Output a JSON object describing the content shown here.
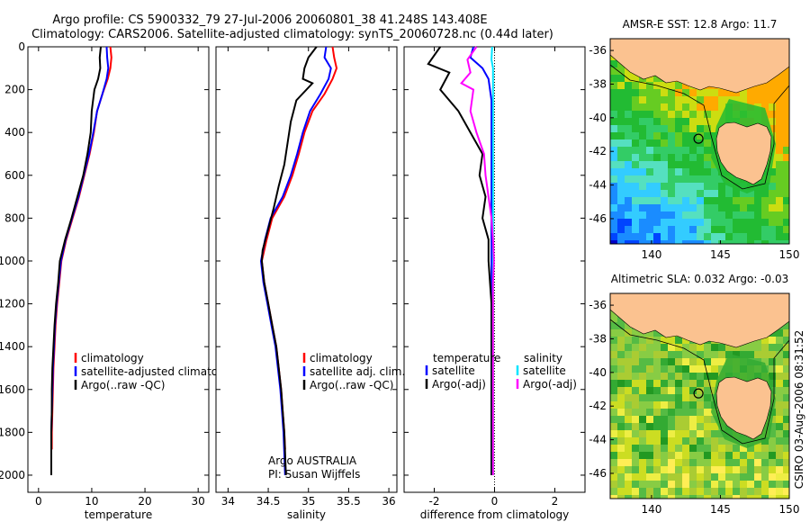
{
  "header": {
    "line1": "Argo profile: CS 5900332_79 27-Jul-2006 20060801_38 41.248S 143.408E",
    "line2": "Climatology: CARS2006. Satellite-adjusted climatology: synTS_20060728.nc (0.44d later)"
  },
  "colors": {
    "clim": "#ff0000",
    "sat": "#0000ff",
    "argo": "#000000",
    "sat_sal": "#00e5ff",
    "argo_sal": "#ff00ff",
    "land": "#fbc290"
  },
  "chart_data": [
    {
      "id": "temperature",
      "type": "line",
      "xlabel": "temperature",
      "ylabel": "",
      "xlim": [
        -2,
        32
      ],
      "ylim": [
        2080,
        0
      ],
      "xticks": [
        "0",
        "10",
        "20",
        "30"
      ],
      "yticks": [
        "0",
        "200",
        "400",
        "600",
        "800",
        "1000",
        "1200",
        "1400",
        "1600",
        "1800",
        "2000"
      ],
      "legend": [
        "climatology",
        "satellite-adjusted climatology",
        "Argo(..raw -QC)"
      ],
      "series": [
        {
          "name": "climatology",
          "color": "clim",
          "points": [
            [
              13.5,
              0
            ],
            [
              13.7,
              50
            ],
            [
              13.5,
              100
            ],
            [
              13.0,
              150
            ],
            [
              12.0,
              220
            ],
            [
              11.0,
              300
            ],
            [
              10.4,
              400
            ],
            [
              9.6,
              500
            ],
            [
              8.6,
              600
            ],
            [
              7.6,
              700
            ],
            [
              6.4,
              800
            ],
            [
              5.2,
              900
            ],
            [
              4.3,
              1000
            ],
            [
              3.9,
              1100
            ],
            [
              3.5,
              1200
            ],
            [
              3.2,
              1300
            ],
            [
              3.0,
              1400
            ],
            [
              2.8,
              1500
            ],
            [
              2.7,
              1600
            ],
            [
              2.6,
              1700
            ],
            [
              2.5,
              1800
            ],
            [
              2.5,
              1880
            ]
          ]
        },
        {
          "name": "satellite-adjusted climatology",
          "color": "sat",
          "points": [
            [
              12.8,
              0
            ],
            [
              12.9,
              50
            ],
            [
              13.1,
              100
            ],
            [
              12.8,
              150
            ],
            [
              12.0,
              220
            ],
            [
              11.0,
              300
            ],
            [
              10.3,
              400
            ],
            [
              9.5,
              500
            ],
            [
              8.5,
              600
            ],
            [
              7.5,
              700
            ],
            [
              6.3,
              800
            ],
            [
              5.1,
              900
            ],
            [
              4.2,
              1000
            ],
            [
              3.8,
              1100
            ],
            [
              3.4,
              1200
            ],
            [
              3.1,
              1300
            ],
            [
              2.9,
              1400
            ],
            [
              2.7,
              1500
            ],
            [
              2.6,
              1600
            ],
            [
              2.5,
              1700
            ],
            [
              2.4,
              1800
            ],
            [
              2.4,
              1900
            ],
            [
              2.4,
              2000
            ]
          ]
        },
        {
          "name": "Argo(..raw -QC)",
          "color": "argo",
          "points": [
            [
              11.7,
              0
            ],
            [
              11.5,
              50
            ],
            [
              11.6,
              100
            ],
            [
              11.2,
              150
            ],
            [
              10.5,
              200
            ],
            [
              10.0,
              300
            ],
            [
              9.8,
              400
            ],
            [
              9.2,
              500
            ],
            [
              8.4,
              600
            ],
            [
              7.3,
              700
            ],
            [
              6.2,
              800
            ],
            [
              5.0,
              900
            ],
            [
              4.0,
              1000
            ],
            [
              3.7,
              1100
            ],
            [
              3.3,
              1200
            ],
            [
              3.0,
              1300
            ],
            [
              2.8,
              1400
            ],
            [
              2.6,
              1500
            ],
            [
              2.5,
              1600
            ],
            [
              2.5,
              1700
            ],
            [
              2.4,
              1800
            ],
            [
              2.4,
              1900
            ],
            [
              2.4,
              2000
            ]
          ]
        }
      ]
    },
    {
      "id": "salinity",
      "type": "line",
      "xlabel": "salinity",
      "ylabel": "",
      "xlim": [
        33.85,
        36.1
      ],
      "ylim": [
        2080,
        0
      ],
      "xticks": [
        "34",
        "34.5",
        "35",
        "35.5",
        "36"
      ],
      "yticks": [],
      "legend": [
        "climatology",
        "satellite adj. clim.",
        "Argo(..raw -QC)"
      ],
      "annotations": [
        "Argo AUSTRALIA",
        "PI: Susan Wijffels"
      ],
      "series": [
        {
          "name": "climatology",
          "color": "clim",
          "points": [
            [
              35.3,
              0
            ],
            [
              35.32,
              50
            ],
            [
              35.35,
              100
            ],
            [
              35.3,
              150
            ],
            [
              35.2,
              220
            ],
            [
              35.05,
              300
            ],
            [
              34.95,
              400
            ],
            [
              34.88,
              500
            ],
            [
              34.8,
              600
            ],
            [
              34.7,
              700
            ],
            [
              34.55,
              800
            ],
            [
              34.48,
              900
            ],
            [
              34.42,
              1000
            ],
            [
              34.45,
              1100
            ],
            [
              34.5,
              1200
            ],
            [
              34.55,
              1300
            ],
            [
              34.6,
              1400
            ],
            [
              34.63,
              1500
            ],
            [
              34.66,
              1600
            ],
            [
              34.68,
              1700
            ],
            [
              34.7,
              1800
            ],
            [
              34.71,
              1880
            ]
          ]
        },
        {
          "name": "satellite adj. clim.",
          "color": "sat",
          "points": [
            [
              35.22,
              0
            ],
            [
              35.2,
              50
            ],
            [
              35.28,
              100
            ],
            [
              35.25,
              150
            ],
            [
              35.15,
              220
            ],
            [
              35.02,
              300
            ],
            [
              34.93,
              400
            ],
            [
              34.86,
              500
            ],
            [
              34.78,
              600
            ],
            [
              34.68,
              700
            ],
            [
              34.53,
              800
            ],
            [
              34.46,
              900
            ],
            [
              34.41,
              1000
            ],
            [
              34.44,
              1100
            ],
            [
              34.49,
              1200
            ],
            [
              34.54,
              1300
            ],
            [
              34.59,
              1400
            ],
            [
              34.62,
              1500
            ],
            [
              34.65,
              1600
            ],
            [
              34.67,
              1700
            ],
            [
              34.69,
              1800
            ],
            [
              34.7,
              1900
            ],
            [
              34.71,
              2000
            ]
          ]
        },
        {
          "name": "Argo(..raw -QC)",
          "color": "argo",
          "points": [
            [
              35.1,
              0
            ],
            [
              35.0,
              50
            ],
            [
              34.95,
              100
            ],
            [
              34.93,
              150
            ],
            [
              35.05,
              170
            ],
            [
              34.85,
              250
            ],
            [
              34.78,
              350
            ],
            [
              34.74,
              450
            ],
            [
              34.7,
              550
            ],
            [
              34.63,
              650
            ],
            [
              34.57,
              750
            ],
            [
              34.5,
              850
            ],
            [
              34.43,
              950
            ],
            [
              34.42,
              1000
            ],
            [
              34.45,
              1100
            ],
            [
              34.5,
              1200
            ],
            [
              34.55,
              1300
            ],
            [
              34.6,
              1400
            ],
            [
              34.63,
              1500
            ],
            [
              34.66,
              1600
            ],
            [
              34.68,
              1700
            ],
            [
              34.7,
              1800
            ],
            [
              34.71,
              1900
            ],
            [
              34.72,
              2000
            ]
          ]
        }
      ]
    },
    {
      "id": "difference",
      "type": "line",
      "xlabel": "difference from climatology",
      "ylabel": "",
      "xlim": [
        -3.0,
        3.0
      ],
      "ylim": [
        2080,
        0
      ],
      "xticks": [
        "-2",
        "0",
        "2"
      ],
      "yticks": [],
      "legend_left": [
        "temperature",
        "satellite",
        "Argo(-adj)"
      ],
      "legend_right": [
        "salinity",
        "satellite",
        "Argo(-adj)"
      ],
      "series": [
        {
          "name": "temperature satellite",
          "color": "sat",
          "points": [
            [
              -0.7,
              0
            ],
            [
              -0.8,
              50
            ],
            [
              -0.4,
              100
            ],
            [
              -0.2,
              150
            ],
            [
              -0.1,
              250
            ],
            [
              -0.1,
              400
            ],
            [
              -0.1,
              600
            ],
            [
              -0.1,
              800
            ],
            [
              -0.1,
              1000
            ],
            [
              -0.1,
              1200
            ],
            [
              -0.1,
              1400
            ],
            [
              -0.1,
              1600
            ],
            [
              -0.1,
              1800
            ],
            [
              -0.1,
              2000
            ]
          ]
        },
        {
          "name": "temperature Argo(-adj)",
          "color": "argo",
          "points": [
            [
              -1.8,
              0
            ],
            [
              -2.2,
              80
            ],
            [
              -1.5,
              120
            ],
            [
              -1.8,
              200
            ],
            [
              -1.2,
              300
            ],
            [
              -0.8,
              400
            ],
            [
              -0.4,
              500
            ],
            [
              -0.5,
              600
            ],
            [
              -0.3,
              700
            ],
            [
              -0.4,
              800
            ],
            [
              -0.2,
              900
            ],
            [
              -0.2,
              1000
            ],
            [
              -0.1,
              1200
            ],
            [
              -0.1,
              1400
            ],
            [
              -0.1,
              1600
            ],
            [
              -0.1,
              1800
            ],
            [
              -0.1,
              2000
            ]
          ]
        },
        {
          "name": "salinity satellite",
          "color": "sat_sal",
          "points": [
            [
              -0.08,
              0
            ],
            [
              -0.1,
              60
            ],
            [
              -0.05,
              100
            ],
            [
              -0.05,
              200
            ],
            [
              -0.05,
              400
            ],
            [
              -0.05,
              600
            ],
            [
              -0.05,
              800
            ],
            [
              -0.05,
              1000
            ],
            [
              -0.05,
              1200
            ],
            [
              -0.05,
              1400
            ],
            [
              -0.05,
              1600
            ],
            [
              -0.05,
              1800
            ],
            [
              -0.05,
              2000
            ]
          ]
        },
        {
          "name": "salinity Argo(-adj)",
          "color": "argo_sal",
          "points": [
            [
              -0.6,
              0
            ],
            [
              -0.9,
              60
            ],
            [
              -0.8,
              120
            ],
            [
              -1.1,
              170
            ],
            [
              -0.7,
              200
            ],
            [
              -0.8,
              300
            ],
            [
              -0.6,
              400
            ],
            [
              -0.35,
              500
            ],
            [
              -0.3,
              600
            ],
            [
              -0.2,
              700
            ],
            [
              -0.1,
              800
            ],
            [
              -0.05,
              900
            ],
            [
              -0.02,
              1000
            ],
            [
              -0.05,
              1100
            ],
            [
              -0.05,
              1200
            ],
            [
              -0.05,
              1400
            ],
            [
              -0.05,
              1600
            ],
            [
              -0.05,
              1800
            ],
            [
              -0.05,
              2000
            ]
          ]
        }
      ]
    },
    {
      "id": "sst_map",
      "type": "heatmap",
      "title": "AMSR-E SST: 12.8 Argo: 11.7",
      "xlim": [
        137,
        150
      ],
      "ylim": [
        -47.5,
        -35.3
      ],
      "xticks": [
        "140",
        "145",
        "150"
      ],
      "yticks": [
        "-36",
        "-38",
        "-40",
        "-42",
        "-44",
        "-46"
      ],
      "argo_position": {
        "lon": 143.408,
        "lat": -41.248
      }
    },
    {
      "id": "sla_map",
      "type": "heatmap",
      "title": "Altimetric SLA: 0.032 Argo: -0.03",
      "xlim": [
        137,
        150
      ],
      "ylim": [
        -47.5,
        -35.3
      ],
      "xticks": [
        "140",
        "145",
        "150"
      ],
      "yticks": [
        "-36",
        "-38",
        "-40",
        "-42",
        "-44",
        "-46"
      ],
      "argo_position": {
        "lon": 143.408,
        "lat": -41.248
      }
    }
  ],
  "footer_stamp": "CSIRO 03-Aug-2006 08:31:52"
}
